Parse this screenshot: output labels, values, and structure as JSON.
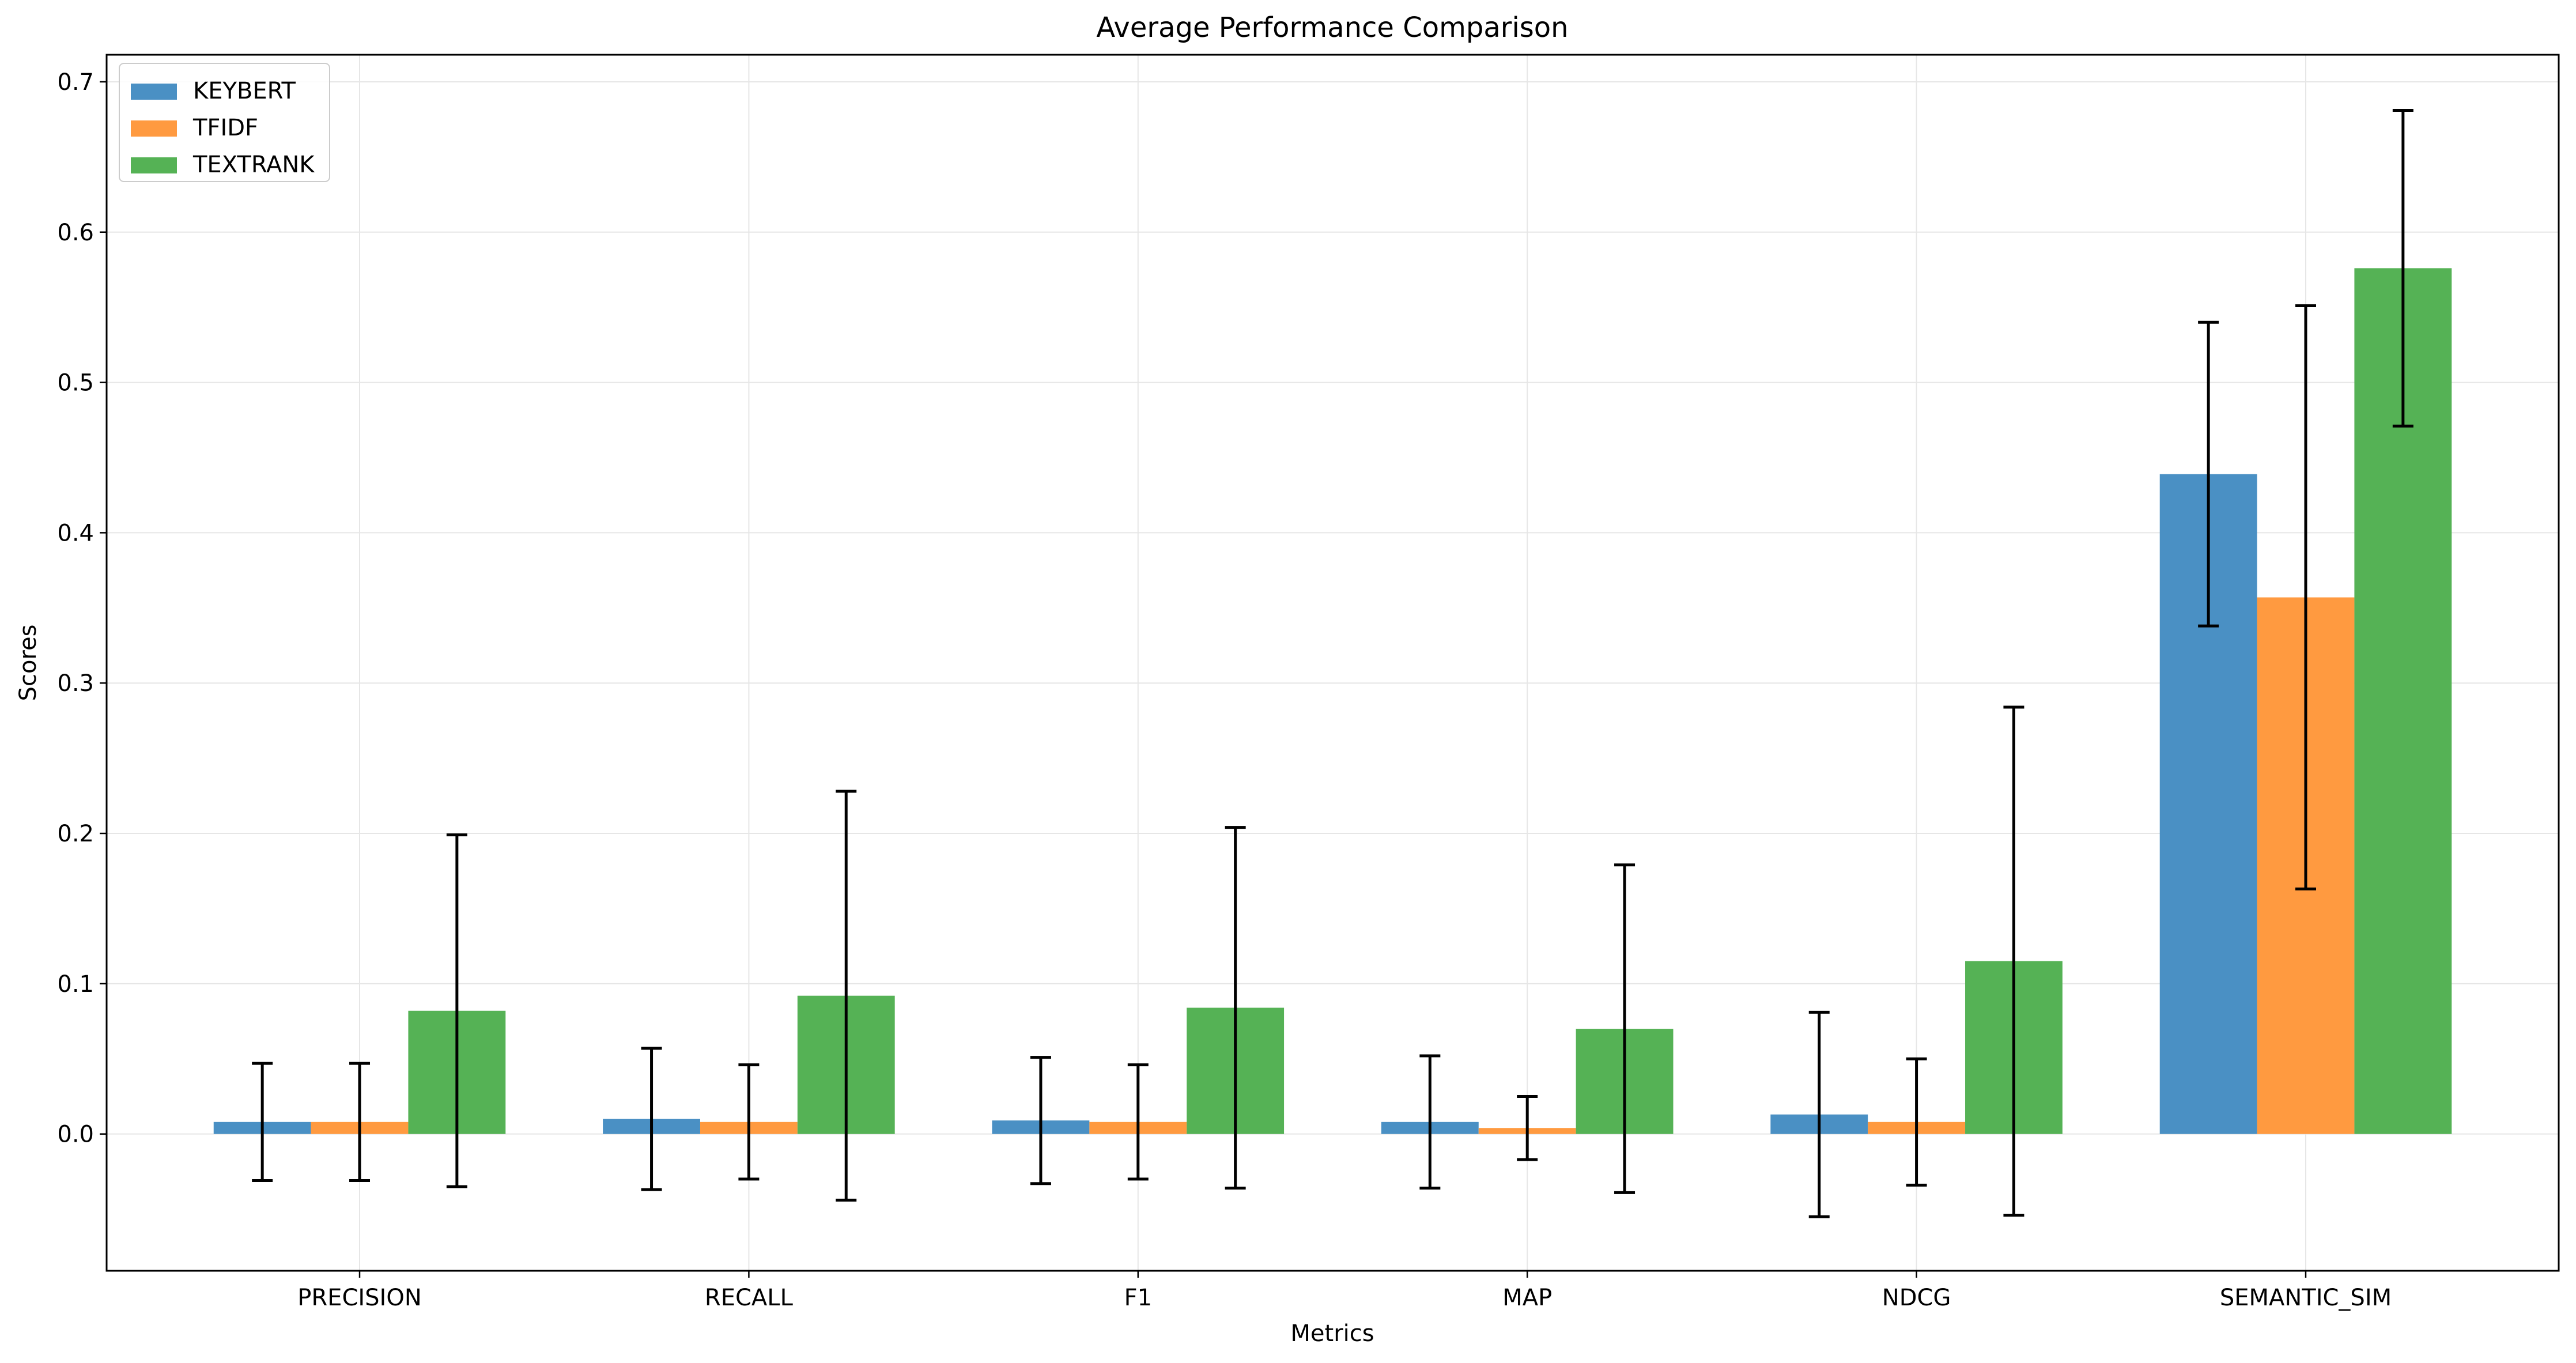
{
  "chart_data": {
    "type": "bar",
    "title": "Average Performance Comparison",
    "xlabel": "Metrics",
    "ylabel": "Scores",
    "categories": [
      "PRECISION",
      "RECALL",
      "F1",
      "MAP",
      "NDCG",
      "SEMANTIC_SIM"
    ],
    "ylim": [
      -0.091,
      0.718
    ],
    "yticks": [
      0.0,
      0.1,
      0.2,
      0.3,
      0.4,
      0.5,
      0.6,
      0.7
    ],
    "ytick_labels": [
      "0.0",
      "0.1",
      "0.2",
      "0.3",
      "0.4",
      "0.5",
      "0.6",
      "0.7"
    ],
    "grid": true,
    "legend_position": "top-left",
    "error_bars": true,
    "series": [
      {
        "name": "KEYBERT",
        "color": "#4a90c4",
        "values": [
          0.008,
          0.01,
          0.009,
          0.008,
          0.013,
          0.439
        ],
        "errors": [
          0.039,
          0.047,
          0.042,
          0.044,
          0.068,
          0.101
        ]
      },
      {
        "name": "TFIDF",
        "color": "#ff9a40",
        "values": [
          0.008,
          0.008,
          0.008,
          0.004,
          0.008,
          0.357
        ],
        "errors": [
          0.039,
          0.038,
          0.038,
          0.021,
          0.042,
          0.194
        ]
      },
      {
        "name": "TEXTRANK",
        "color": "#55b255",
        "values": [
          0.082,
          0.092,
          0.084,
          0.07,
          0.115,
          0.576
        ],
        "errors": [
          0.117,
          0.136,
          0.12,
          0.109,
          0.169,
          0.105
        ]
      }
    ]
  }
}
